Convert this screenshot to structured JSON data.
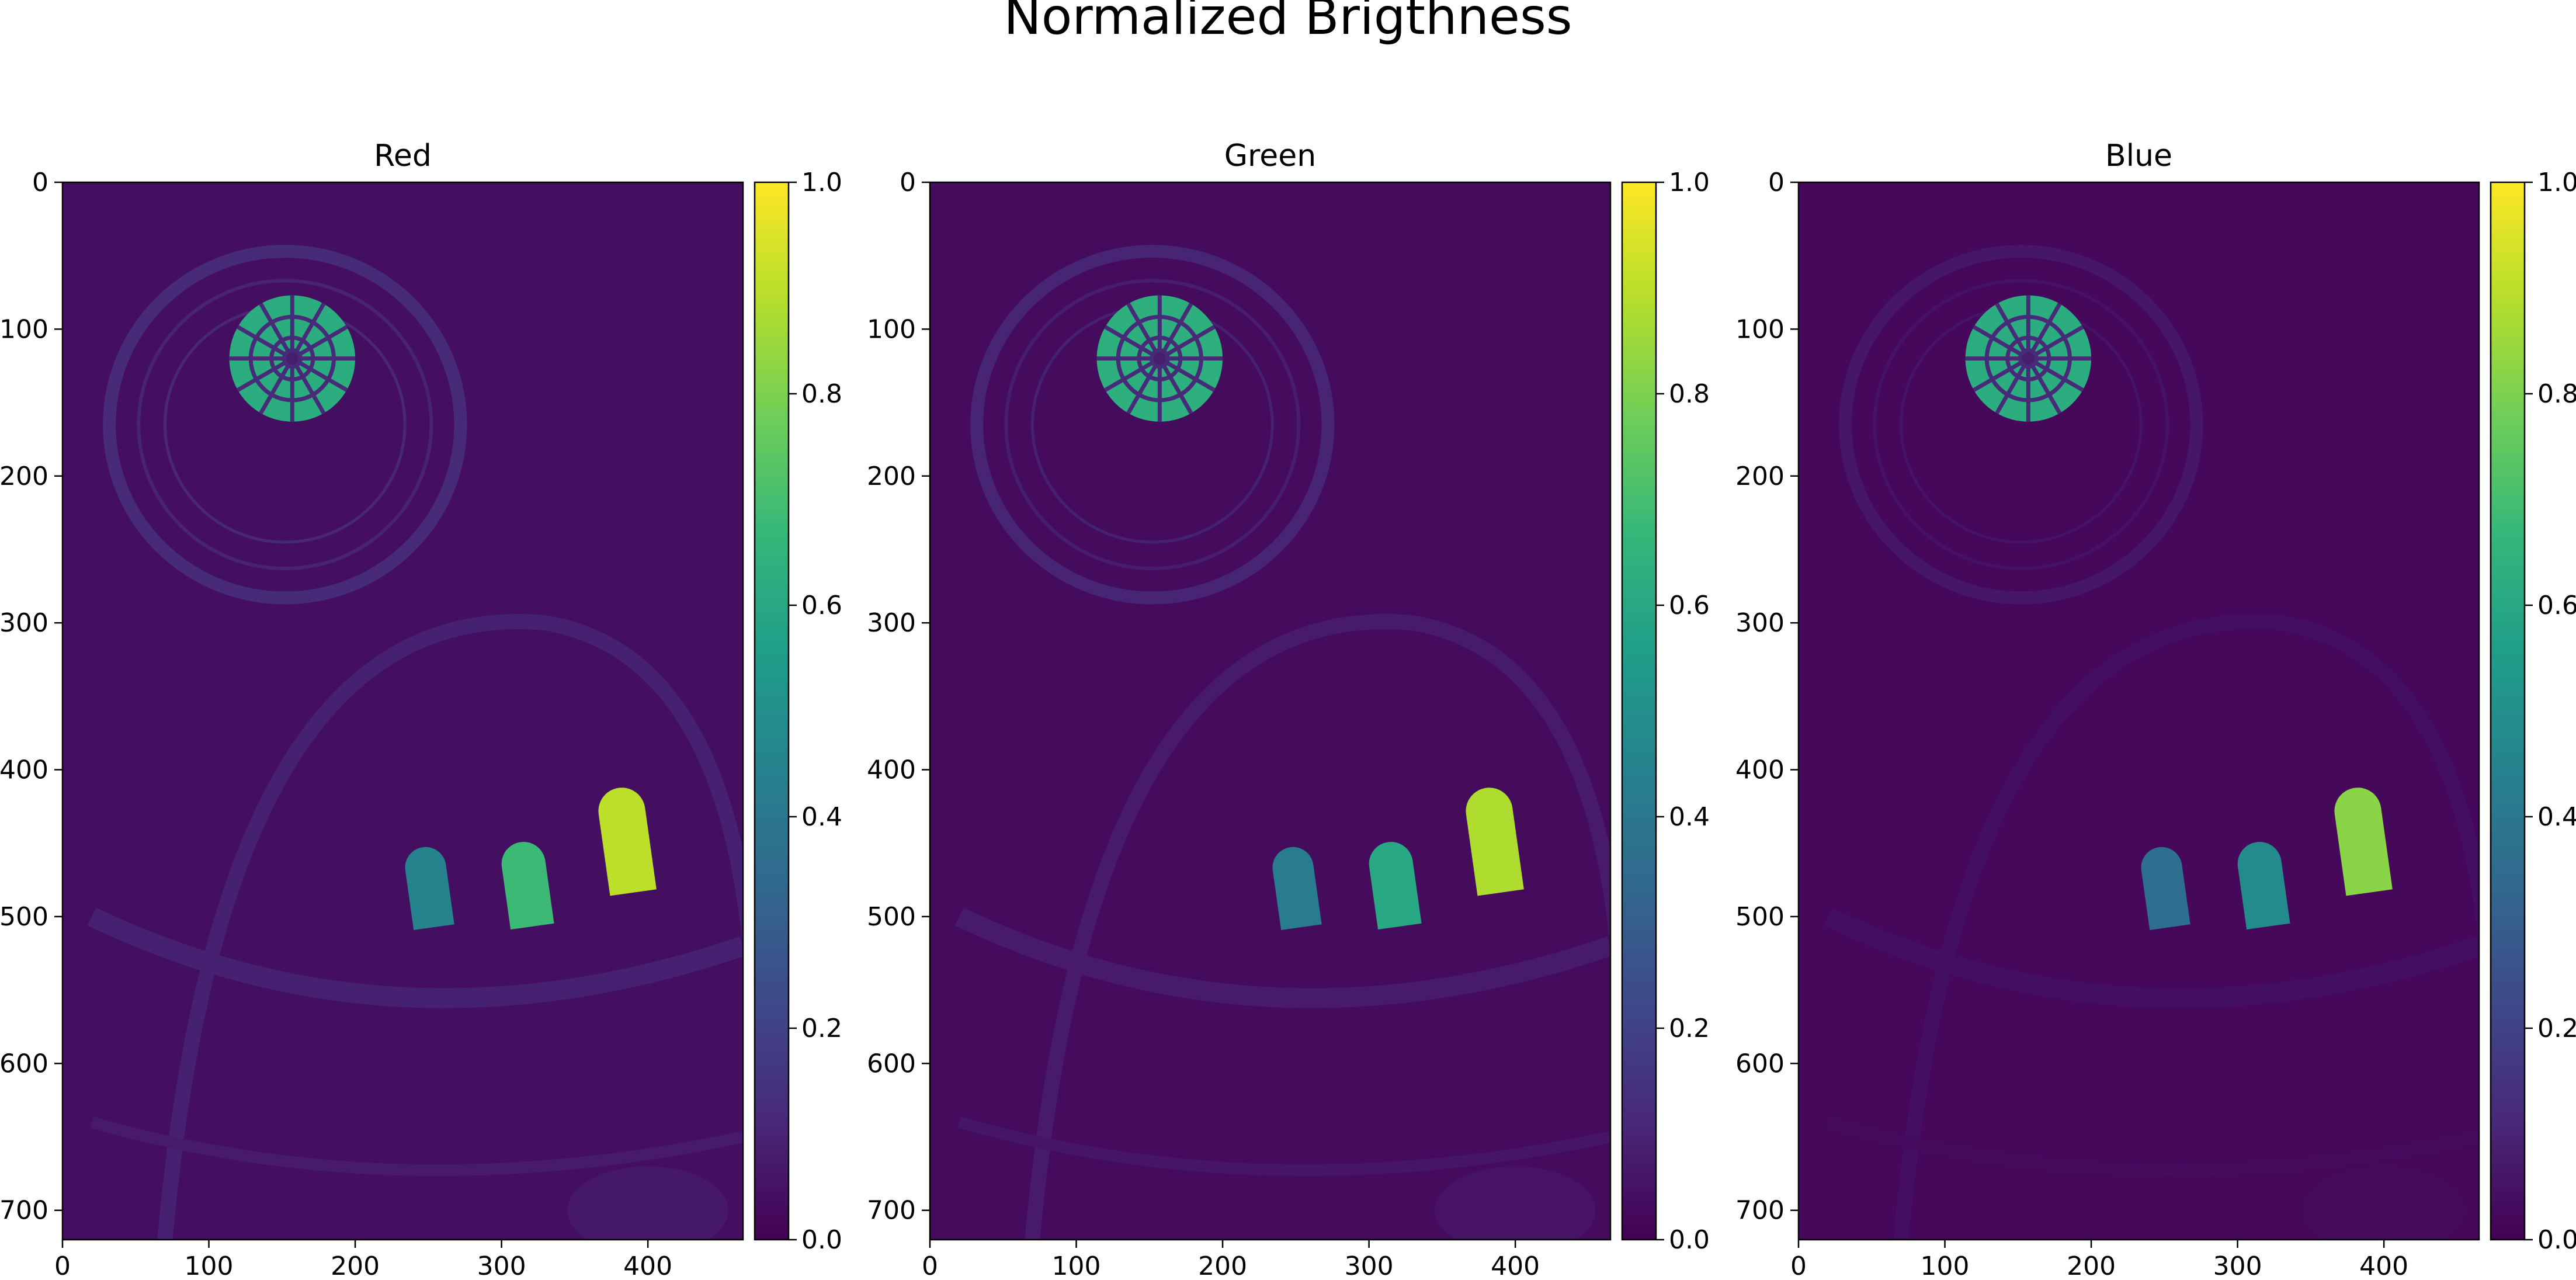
{
  "figure": {
    "suptitle": "Normalized Brigthness"
  },
  "colormap": {
    "name": "viridis",
    "stops": [
      "#440154",
      "#482878",
      "#3e4989",
      "#31688e",
      "#26828e",
      "#1f9e89",
      "#35b779",
      "#6ece58",
      "#b5de2b",
      "#fde725"
    ]
  },
  "chart_data": [
    {
      "type": "heatmap",
      "title": "Red",
      "xlim": [
        0,
        465
      ],
      "ylim": [
        720,
        0
      ],
      "x_ticks": [
        "0",
        "100",
        "200",
        "300",
        "400"
      ],
      "y_ticks": [
        "0",
        "100",
        "200",
        "300",
        "400",
        "500",
        "600",
        "700"
      ],
      "colorbar": {
        "range": [
          0.0,
          1.0
        ],
        "ticks": [
          "0.0",
          "0.2",
          "0.4",
          "0.6",
          "0.8",
          "1.0"
        ]
      },
      "features": {
        "background": 0.04,
        "dome_ring": 0.12,
        "apse_arch": 0.09,
        "oculus": {
          "center": [
            157,
            120
          ],
          "radius": 43,
          "value": 0.62
        },
        "windows": [
          {
            "center": [
              250,
              480
            ],
            "width": 28,
            "height": 55,
            "value": 0.45
          },
          {
            "center": [
              317,
              478
            ],
            "width": 30,
            "height": 58,
            "value": 0.68
          },
          {
            "center": [
              385,
              448
            ],
            "width": 32,
            "height": 72,
            "value": 0.9
          }
        ]
      }
    },
    {
      "type": "heatmap",
      "title": "Green",
      "xlim": [
        0,
        465
      ],
      "ylim": [
        720,
        0
      ],
      "x_ticks": [
        "0",
        "100",
        "200",
        "300",
        "400"
      ],
      "y_ticks": [
        "0",
        "100",
        "200",
        "300",
        "400",
        "500",
        "600",
        "700"
      ],
      "colorbar": {
        "range": [
          0.0,
          1.0
        ],
        "ticks": [
          "0.0",
          "0.2",
          "0.4",
          "0.6",
          "0.8",
          "1.0"
        ]
      },
      "features": {
        "background": 0.03,
        "dome_ring": 0.1,
        "apse_arch": 0.07,
        "oculus": {
          "center": [
            157,
            120
          ],
          "radius": 43,
          "value": 0.63
        },
        "windows": [
          {
            "center": [
              250,
              480
            ],
            "width": 28,
            "height": 55,
            "value": 0.42
          },
          {
            "center": [
              317,
              478
            ],
            "width": 30,
            "height": 58,
            "value": 0.6
          },
          {
            "center": [
              385,
              448
            ],
            "width": 32,
            "height": 72,
            "value": 0.88
          }
        ]
      }
    },
    {
      "type": "heatmap",
      "title": "Blue",
      "xlim": [
        0,
        465
      ],
      "ylim": [
        720,
        0
      ],
      "x_ticks": [
        "0",
        "100",
        "200",
        "300",
        "400"
      ],
      "y_ticks": [
        "0",
        "100",
        "200",
        "300",
        "400",
        "500",
        "600",
        "700"
      ],
      "colorbar": {
        "range": [
          0.0,
          1.0
        ],
        "ticks": [
          "0.0",
          "0.2",
          "0.4",
          "0.6",
          "0.8",
          "1.0"
        ]
      },
      "features": {
        "background": 0.02,
        "dome_ring": 0.06,
        "apse_arch": 0.04,
        "oculus": {
          "center": [
            157,
            120
          ],
          "radius": 43,
          "value": 0.62
        },
        "windows": [
          {
            "center": [
              250,
              480
            ],
            "width": 28,
            "height": 55,
            "value": 0.36
          },
          {
            "center": [
              317,
              478
            ],
            "width": 30,
            "height": 58,
            "value": 0.48
          },
          {
            "center": [
              385,
              448
            ],
            "width": 32,
            "height": 72,
            "value": 0.82
          }
        ]
      }
    }
  ]
}
